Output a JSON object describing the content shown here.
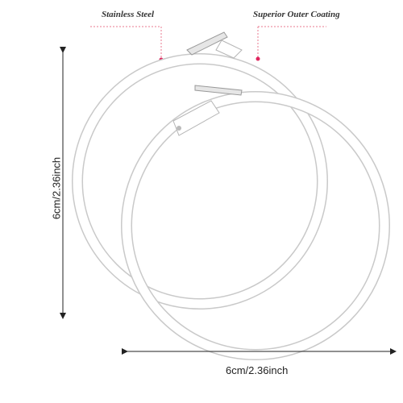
{
  "callouts": {
    "stainless": "Stainless Steel",
    "coating": "Superior Outer Coating"
  },
  "dimensions": {
    "width": "6cm/2.36inch",
    "height": "6cm/2.36inch"
  },
  "colors": {
    "accent_dot": "#e0245e",
    "dashed_line": "#e8788f",
    "arrow": "#222222",
    "hoop_fill": "#ffffff",
    "hoop_edge": "#c9c9c9"
  }
}
